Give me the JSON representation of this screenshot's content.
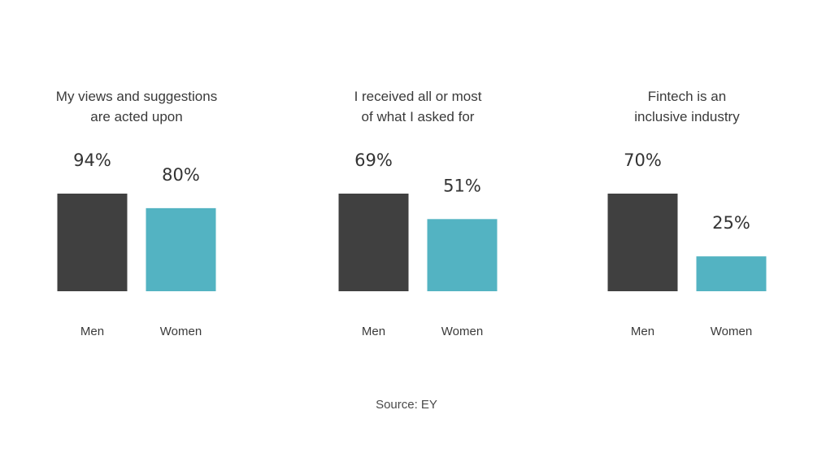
{
  "chart_data": [
    {
      "type": "bar",
      "title": "My views and suggestions are acted upon",
      "title_lines": [
        "My views and suggestions",
        "are acted upon"
      ],
      "categories": [
        "Men",
        "Women"
      ],
      "values": [
        94,
        80
      ],
      "value_labels": [
        "94%",
        "80%"
      ],
      "colors": [
        "#404040",
        "#53b3c2"
      ]
    },
    {
      "type": "bar",
      "title": "I received all or most of what I asked for",
      "title_lines": [
        "I received all or most",
        "of what I asked for"
      ],
      "categories": [
        "Men",
        "Women"
      ],
      "values": [
        69,
        51
      ],
      "value_labels": [
        "69%",
        "51%"
      ],
      "colors": [
        "#404040",
        "#53b3c2"
      ]
    },
    {
      "type": "bar",
      "title": "Fintech is an inclusive industry",
      "title_lines": [
        "Fintech is an",
        "inclusive industry"
      ],
      "categories": [
        "Men",
        "Women"
      ],
      "values": [
        70,
        25
      ],
      "value_labels": [
        "70%",
        "25%"
      ],
      "colors": [
        "#404040",
        "#53b3c2"
      ]
    }
  ],
  "source": "Source: EY"
}
